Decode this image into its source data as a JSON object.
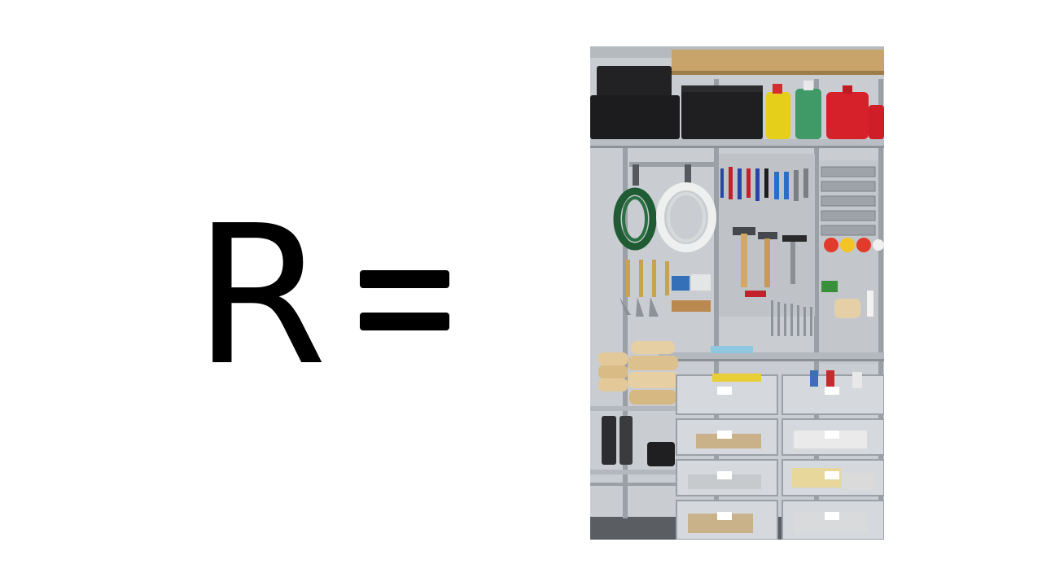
{
  "slide": {
    "variable": "R",
    "operator": "="
  },
  "picture": {
    "subject": "garage-storage-wall",
    "colors": {
      "wall": "#c9ccd0",
      "rail": "#9aa0a6",
      "shelf": "#b9bec4",
      "bin_black": "#1c1c1e",
      "wood": "#c8a46a",
      "jug_yellow": "#e6cf1b",
      "jug_green": "#3f9a68",
      "can_red": "#d7212a",
      "hose_green": "#1f5c33",
      "hose_white": "#eef0f0",
      "floor": "#5a5e62"
    }
  }
}
